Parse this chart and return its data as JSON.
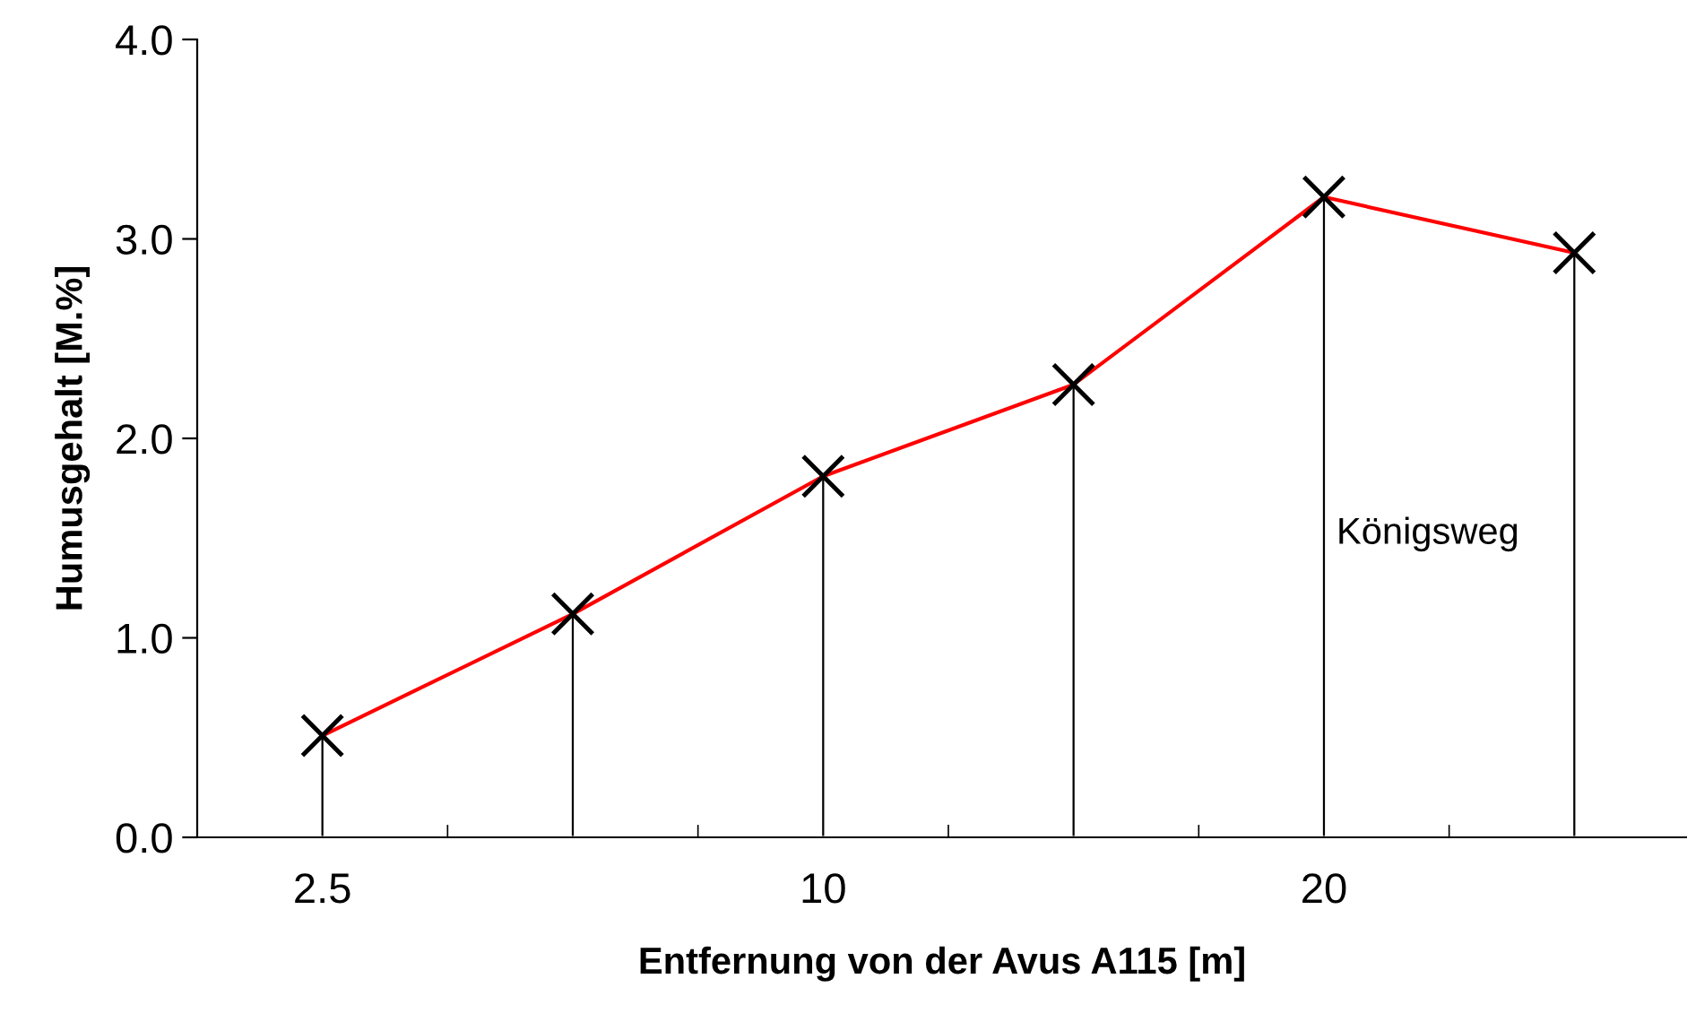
{
  "chart_data": {
    "type": "line",
    "xlabel": "Entfernung von der Avus A115 [m]",
    "ylabel": "Humusgehalt [M.%]",
    "categories": [
      "2.5",
      null,
      "10",
      null,
      "20",
      null
    ],
    "series": [
      {
        "type": "bar",
        "color": "#000000",
        "values": [
          0.51,
          1.12,
          1.81,
          2.27,
          3.21,
          2.93
        ]
      },
      {
        "color": "#ff0000",
        "values": [
          0.51,
          1.12,
          1.81,
          2.27,
          3.21,
          2.93
        ]
      }
    ],
    "ylim": [
      0,
      4
    ],
    "yticks": [
      {
        "value": 0,
        "label": "0.0"
      },
      {
        "value": 1,
        "label": "1.0"
      },
      {
        "value": 2,
        "label": "2.0"
      },
      {
        "value": 3,
        "label": "3.0"
      },
      {
        "value": 4,
        "label": "4.0"
      }
    ],
    "marker": "cross",
    "grid": false,
    "legend": false,
    "annotations": [
      "Königsweg"
    ]
  }
}
